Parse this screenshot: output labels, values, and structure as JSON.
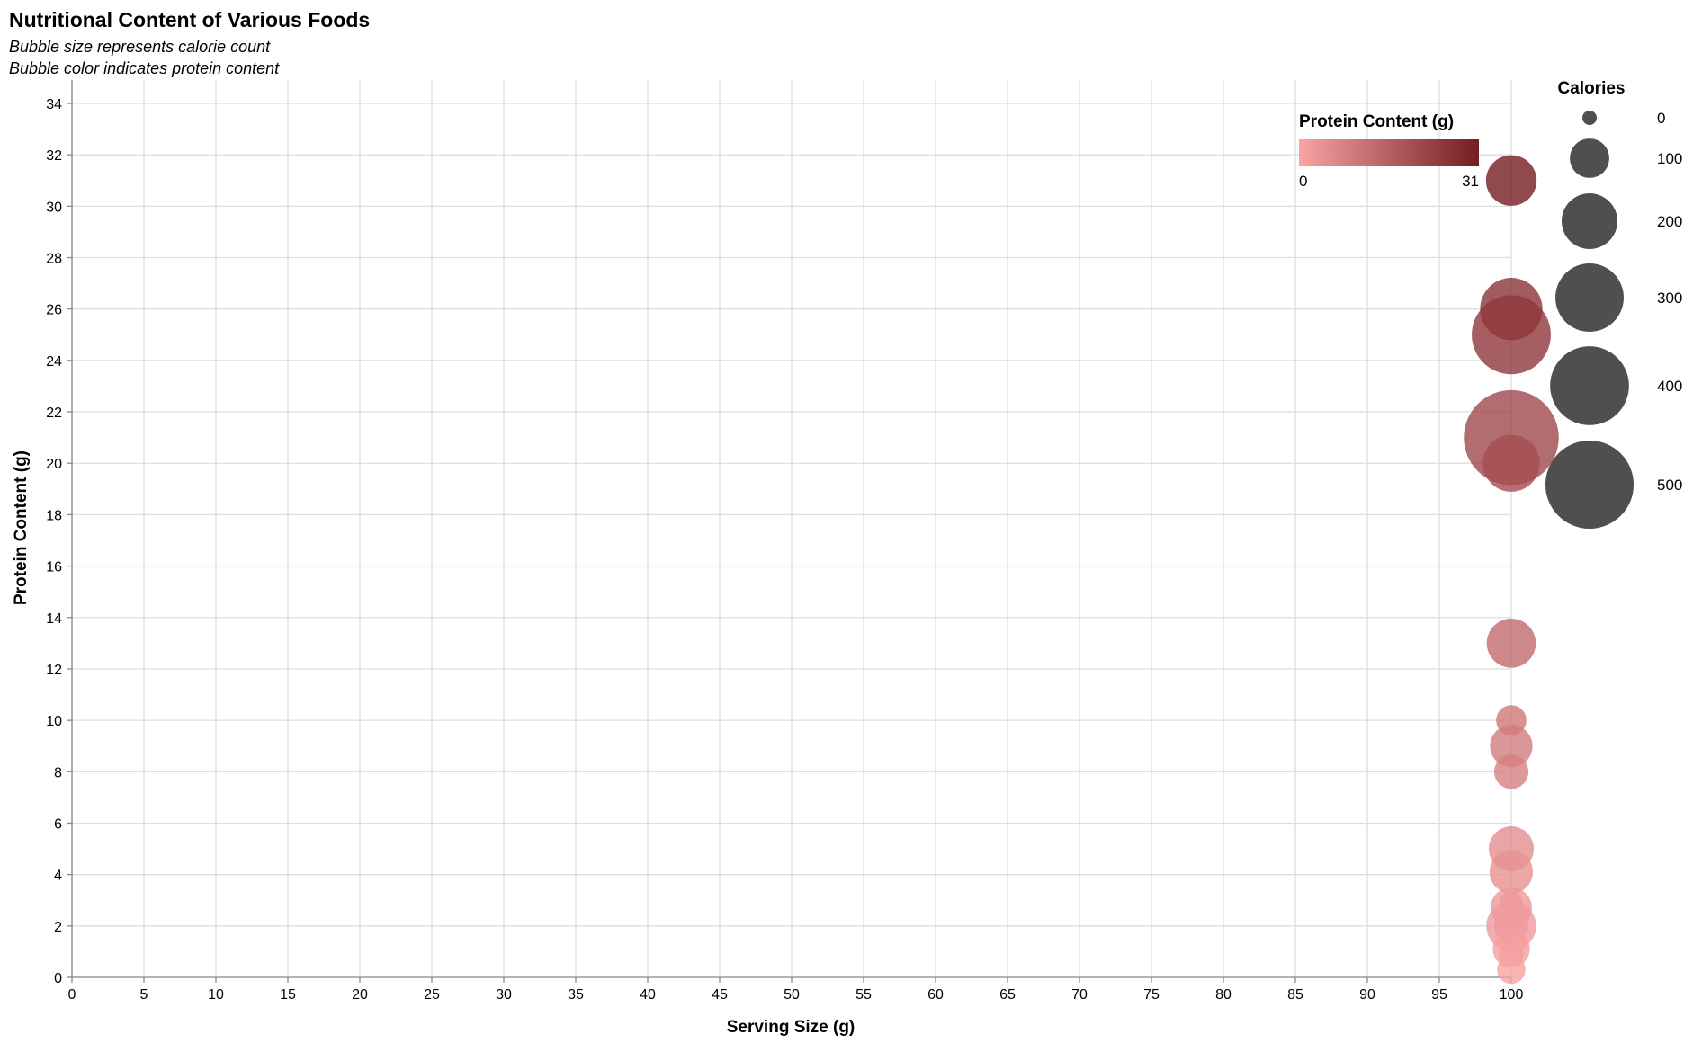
{
  "chart_data": {
    "type": "scatter",
    "title": "Nutritional Content of Various Foods",
    "subtitle": [
      "Bubble size represents calorie count",
      "Bubble color indicates protein content"
    ],
    "xlabel": "Serving Size (g)",
    "ylabel": "Protein Content (g)",
    "xlim": [
      0,
      100
    ],
    "ylim": [
      0,
      34
    ],
    "x_ticks": [
      0,
      5,
      10,
      15,
      20,
      25,
      30,
      35,
      40,
      45,
      50,
      55,
      60,
      65,
      70,
      75,
      80,
      85,
      90,
      95,
      100
    ],
    "y_ticks": [
      0,
      2,
      4,
      6,
      8,
      10,
      12,
      14,
      16,
      18,
      20,
      22,
      24,
      26,
      28,
      30,
      32,
      34
    ],
    "grid": true,
    "color_legend": {
      "title": "Protein Content (g)",
      "min_label": "0",
      "max_label": "31",
      "domain": [
        0,
        31
      ],
      "color_low": "#f9a3a4",
      "color_high": "#741d22"
    },
    "size_legend": {
      "title": "Calories",
      "values": [
        0,
        100,
        200,
        300,
        400,
        500
      ],
      "color": "#4f4f4f"
    },
    "points": [
      {
        "x": 100,
        "protein": 31,
        "calories": 165
      },
      {
        "x": 100,
        "protein": 26,
        "calories": 250
      },
      {
        "x": 100,
        "protein": 25,
        "calories": 402
      },
      {
        "x": 100,
        "protein": 21,
        "calories": 579
      },
      {
        "x": 100,
        "protein": 20,
        "calories": 208
      },
      {
        "x": 100,
        "protein": 13,
        "calories": 155
      },
      {
        "x": 100,
        "protein": 10,
        "calories": 59
      },
      {
        "x": 100,
        "protein": 9,
        "calories": 116
      },
      {
        "x": 100,
        "protein": 8,
        "calories": 76
      },
      {
        "x": 100,
        "protein": 5,
        "calories": 130
      },
      {
        "x": 100,
        "protein": 4.1,
        "calories": 120
      },
      {
        "x": 100,
        "protein": 2.9,
        "calories": 34
      },
      {
        "x": 100,
        "protein": 2.7,
        "calories": 110
      },
      {
        "x": 100,
        "protein": 2,
        "calories": 160
      },
      {
        "x": 100,
        "protein": 2,
        "calories": 77
      },
      {
        "x": 100,
        "protein": 1.1,
        "calories": 89
      },
      {
        "x": 100,
        "protein": 0.9,
        "calories": 40
      },
      {
        "x": 100,
        "protein": 0.3,
        "calories": 52
      }
    ]
  }
}
